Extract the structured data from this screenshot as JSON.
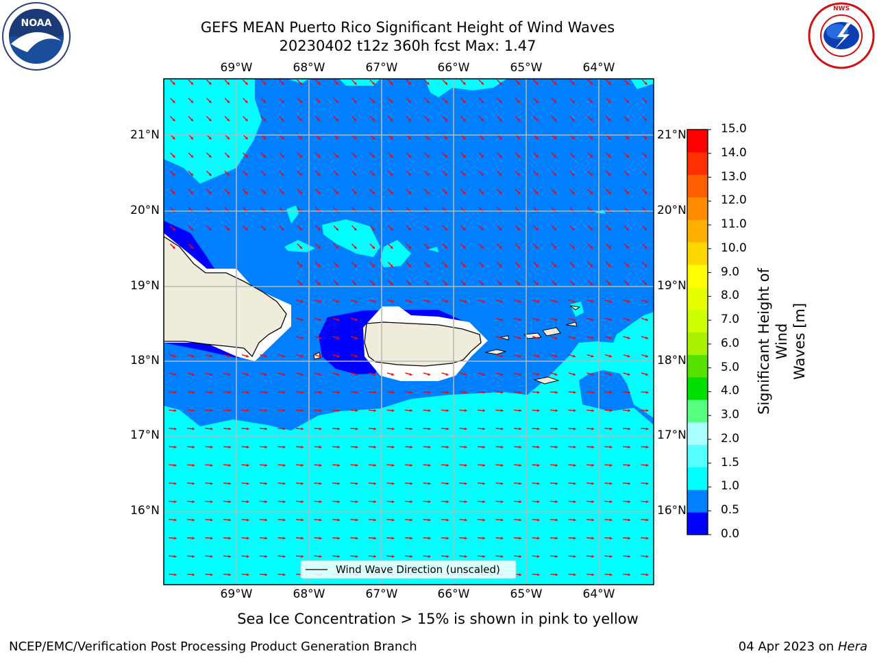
{
  "title": {
    "line1": "GEFS MEAN Puerto Rico Significant Height of Wind Waves",
    "line2": "20230402 t12z 360h fcst   Max: 1.47"
  },
  "logos": {
    "left": {
      "name": "NOAA",
      "ring_text": "NATIONAL OCEANIC AND ATMOSPHERIC ADMINISTRATION",
      "bottom_text": "U.S. DEPARTMENT OF COMMERCE"
    },
    "right": {
      "name": "NATIONAL WEATHER SERVICE"
    }
  },
  "map": {
    "lon_labels": [
      "69°W",
      "68°W",
      "67°W",
      "66°W",
      "65°W",
      "64°W"
    ],
    "lat_labels": [
      "21°N",
      "20°N",
      "19°N",
      "18°N",
      "17°N",
      "16°N"
    ],
    "legend_label": "Wind Wave Direction (unscaled)",
    "colors": {
      "ocean_0_0.5": "#0000ff",
      "ocean_0.5_1": "#0080ff",
      "ocean_1_1.5": "#00ffff",
      "land": "#f0ecdc",
      "arrow": "#ff0000",
      "grid": "#b8b8b8"
    }
  },
  "colorbar": {
    "label_line1": "Significant Height of Wind",
    "label_line2": "Waves [m]",
    "ticks": [
      "0.0",
      "0.5",
      "1.0",
      "1.5",
      "2.0",
      "3.0",
      "4.0",
      "5.0",
      "6.0",
      "7.0",
      "8.0",
      "9.0",
      "10.0",
      "11.0",
      "12.0",
      "13.0",
      "14.0",
      "15.0"
    ],
    "colors": [
      "#0000ff",
      "#0080ff",
      "#00ffff",
      "#55ffff",
      "#aaffff",
      "#55ff80",
      "#00e000",
      "#55e000",
      "#aaf000",
      "#ccff00",
      "#e6ff00",
      "#ffff00",
      "#ffd700",
      "#ffb000",
      "#ff8c00",
      "#ff6000",
      "#ff3000",
      "#ff0000"
    ]
  },
  "subtitle": "Sea Ice Concentration > 15% is shown in pink to yellow",
  "footer": {
    "left": "NCEP/EMC/Verification Post Processing Product Generation Branch",
    "right_date": "04 Apr 2023 on ",
    "right_machine": "Hera"
  }
}
